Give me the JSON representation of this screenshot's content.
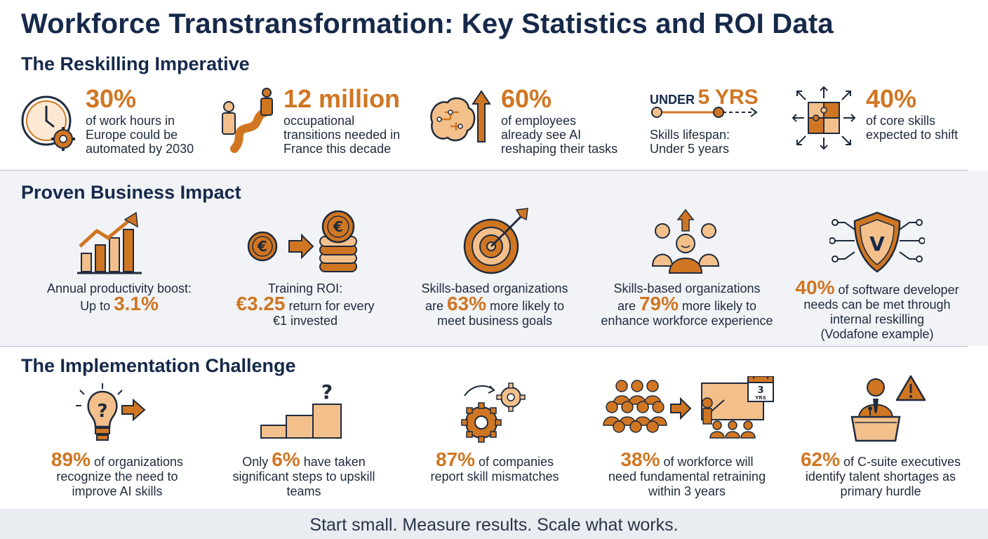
{
  "title": "Workforce Transtransformation: Key Statistics and ROI Data",
  "sections": {
    "reskilling": {
      "title": "The Reskilling Imperative",
      "items": [
        {
          "icon": "clock-gear-icon",
          "stat": "30%",
          "lines": [
            "of work hours in",
            "Europe could be",
            "automated by 2030"
          ]
        },
        {
          "icon": "career-path-icon",
          "stat": "12 million",
          "lines": [
            "occupational",
            "transitions needed in",
            "France this decade"
          ]
        },
        {
          "icon": "ai-brain-icon",
          "stat": "60%",
          "lines": [
            "of employees",
            "already see AI",
            "reshaping their tasks"
          ]
        },
        {
          "icon": "timeline-icon",
          "prefix": "UNDER",
          "stat": "5 YRS",
          "lines": [
            "Skills lifespan:",
            "Under 5 years"
          ]
        },
        {
          "icon": "puzzle-arrows-icon",
          "stat": "40%",
          "lines": [
            "of core skills",
            "expected to shift"
          ]
        }
      ]
    },
    "impact": {
      "title": "Proven Business Impact",
      "items": [
        {
          "icon": "growth-chart-icon",
          "line1": "Annual productivity boost:",
          "pre": "Up to ",
          "stat": "3.1%",
          "post": "",
          "line3": ""
        },
        {
          "icon": "euro-coins-icon",
          "line1": "Training ROI:",
          "pre": "",
          "stat": "€3.25",
          "post": " return for every",
          "line3": "€1 invested"
        },
        {
          "icon": "target-icon",
          "line1": "Skills-based organizations",
          "pre": "are ",
          "stat": "63%",
          "post": " more likely to",
          "line3": "meet business goals"
        },
        {
          "icon": "team-growth-icon",
          "line1": "Skills-based organizations",
          "pre": "are ",
          "stat": "79%",
          "post": " more likely to",
          "line3": "enhance workforce experience"
        },
        {
          "icon": "shield-network-icon",
          "stat": "40%",
          "post": " of software developer",
          "lines": [
            "needs can be met through",
            "internal reskilling",
            "(Vodafone example)"
          ]
        }
      ]
    },
    "challenge": {
      "title": "The Implementation Challenge",
      "items": [
        {
          "icon": "lightbulb-question-icon",
          "pre": "",
          "stat": "89%",
          "post": " of organizations",
          "lines": [
            "recognize the need to",
            "improve AI skills"
          ]
        },
        {
          "icon": "steps-question-icon",
          "pre": "Only ",
          "stat": "6%",
          "post": " have taken",
          "lines": [
            "significant steps to upskill",
            "teams"
          ]
        },
        {
          "icon": "gears-icon",
          "pre": "",
          "stat": "87%",
          "post": " of companies",
          "lines": [
            "report skill mismatches"
          ]
        },
        {
          "icon": "crowd-training-icon",
          "pre": "",
          "stat": "38%",
          "post": " of workforce will",
          "lines": [
            "need fundamental retraining",
            "within 3 years"
          ],
          "calendar_label": "3",
          "calendar_unit": "YRS"
        },
        {
          "icon": "executive-warning-icon",
          "pre": "",
          "stat": "62%",
          "post": " of C-suite executives",
          "lines": [
            "identify talent shortages as",
            "primary hurdle"
          ]
        }
      ]
    }
  },
  "footer": "Start small. Measure results. Scale what works.",
  "colors": {
    "accent": "#d07622",
    "accent_light": "#f3c08c",
    "navy": "#16294a",
    "text": "#1f2a3c"
  }
}
